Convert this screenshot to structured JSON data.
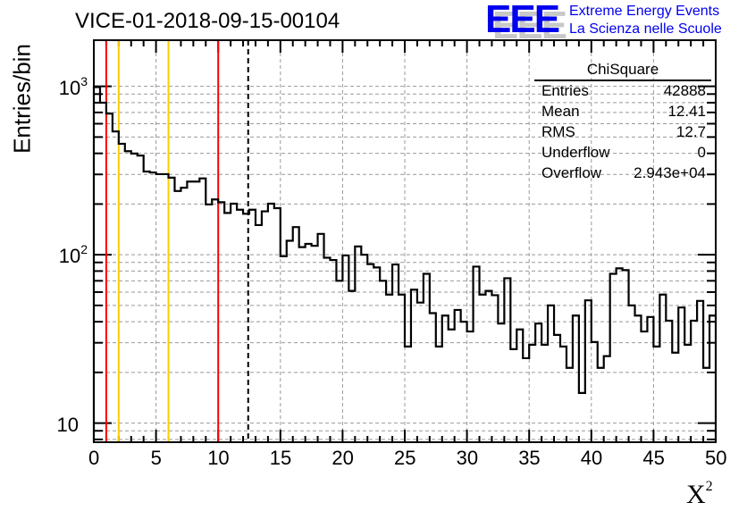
{
  "title": "VICE-01-2018-09-15-00104",
  "logo": {
    "letters": "EEE",
    "line1": "Extreme Energy Events",
    "line2": "La Scienza nelle Scuole",
    "color": "#0000ee"
  },
  "stats": {
    "title": "ChiSquare",
    "rows": [
      {
        "key": "Entries",
        "value": "42888"
      },
      {
        "key": "Mean",
        "value": "12.41"
      },
      {
        "key": "RMS",
        "value": "12.7"
      },
      {
        "key": "Underflow",
        "value": "0"
      },
      {
        "key": "Overflow",
        "value": "2.943e+04"
      }
    ]
  },
  "chart_data": {
    "type": "histogram",
    "title": "VICE-01-2018-09-15-00104",
    "xlabel": "X",
    "xlabel_sup": "2",
    "ylabel": "Entries/bin",
    "xlim": [
      0,
      50
    ],
    "ylim": [
      7.7,
      1880
    ],
    "yscale": "log",
    "grid": true,
    "bin_width": 0.5,
    "x_ticks": [
      "0",
      "5",
      "10",
      "15",
      "20",
      "25",
      "30",
      "35",
      "40",
      "45",
      "50"
    ],
    "y_ticks": [
      {
        "base": "10",
        "exp": "",
        "value": 10
      },
      {
        "base": "10",
        "exp": "2",
        "value": 100
      },
      {
        "base": "10",
        "exp": "3",
        "value": 1000
      }
    ],
    "values": [
      990,
      800,
      689,
      540,
      456,
      412,
      399,
      388,
      312,
      308,
      301,
      301,
      287,
      239,
      250,
      272,
      272,
      284,
      199,
      213,
      205,
      177,
      201,
      185,
      175,
      185,
      150,
      181,
      201,
      189,
      98,
      121,
      146,
      111,
      116,
      113,
      133,
      96,
      93,
      70,
      99,
      61,
      112,
      100,
      88,
      84,
      70,
      58,
      87.5,
      58,
      28.5,
      62,
      52,
      77,
      45,
      28.5,
      43.5,
      36,
      47,
      40,
      35,
      85,
      58,
      61,
      57.5,
      39,
      72.5,
      27.5,
      36,
      24.3,
      29.2,
      39,
      29.2,
      50,
      33.4,
      28.5,
      21.3,
      43.5,
      15.1,
      53.6,
      30.3,
      21.3,
      25,
      77,
      83,
      81,
      50,
      43.5,
      35,
      42.7,
      28.5,
      58,
      40.6,
      26.2,
      48.6,
      29.2,
      40.6,
      53.2,
      21.3,
      43.5
    ],
    "markers": [
      {
        "x": 1,
        "color": "#ff0000",
        "style": "solid"
      },
      {
        "x": 2,
        "color": "#ffcc00",
        "style": "solid"
      },
      {
        "x": 6,
        "color": "#ffcc00",
        "style": "solid"
      },
      {
        "x": 10,
        "color": "#ff0000",
        "style": "solid"
      },
      {
        "x": 12.41,
        "color": "#000000",
        "style": "dashed"
      }
    ]
  }
}
